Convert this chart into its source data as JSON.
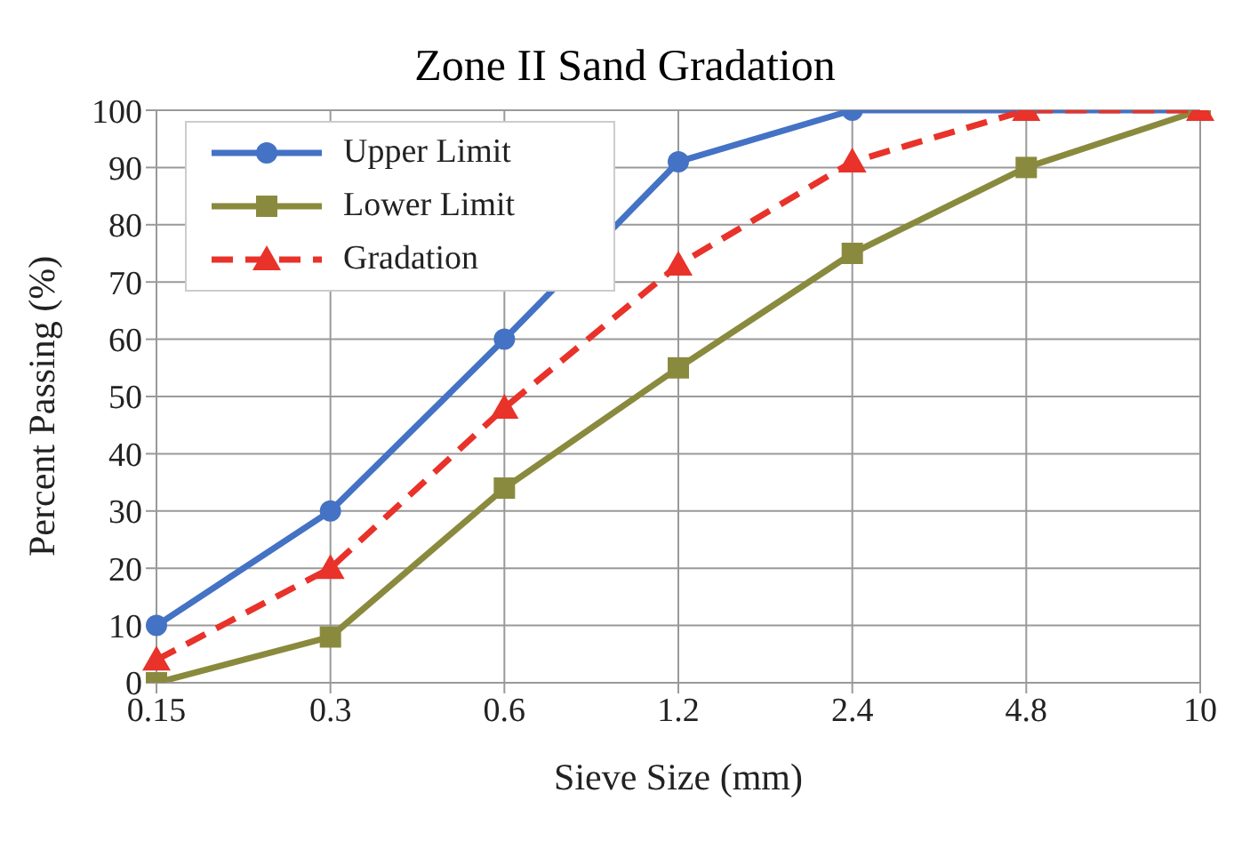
{
  "chart_data": {
    "type": "line",
    "title": "Zone II Sand Gradation",
    "xlabel": "Sieve Size (mm)",
    "ylabel": "Percent Passing (%)",
    "categories": [
      "0.15",
      "0.3",
      "0.6",
      "1.2",
      "2.4",
      "4.8",
      "10"
    ],
    "series": [
      {
        "name": "Upper Limit",
        "color": "#4472c4",
        "marker": "circle",
        "line_style": "solid",
        "values": [
          10,
          30,
          60,
          91,
          100,
          100,
          100
        ]
      },
      {
        "name": "Lower Limit",
        "color": "#8a8a3e",
        "marker": "square",
        "line_style": "solid",
        "values": [
          0,
          8,
          34,
          55,
          75,
          90,
          100
        ]
      },
      {
        "name": "Gradation",
        "color": "#e8322a",
        "marker": "triangle",
        "line_style": "dashed",
        "values": [
          4,
          20,
          48,
          73,
          91,
          100,
          100
        ]
      }
    ],
    "ylim": [
      0,
      100
    ],
    "yticks": [
      0,
      10,
      20,
      30,
      40,
      50,
      60,
      70,
      80,
      90,
      100
    ],
    "grid": true,
    "legend": "top left"
  }
}
